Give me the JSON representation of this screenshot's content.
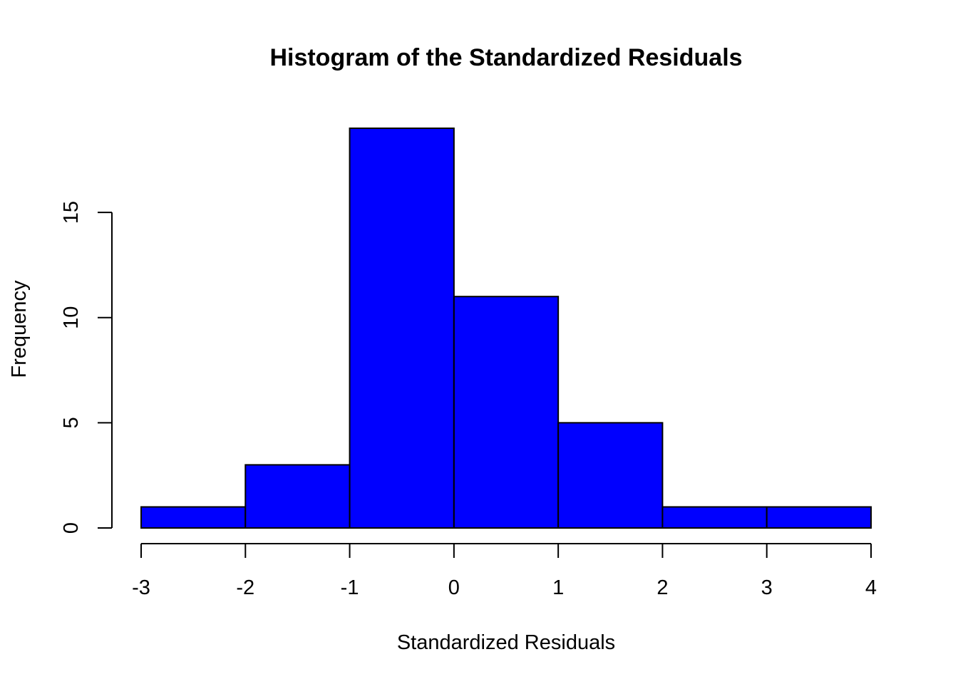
{
  "chart_data": {
    "type": "bar",
    "title": "Histogram of the Standardized Residuals",
    "xlabel": "Standardized Residuals",
    "ylabel": "Frequency",
    "bins": [
      {
        "start": -3,
        "end": -2,
        "count": 1
      },
      {
        "start": -2,
        "end": -1,
        "count": 3
      },
      {
        "start": -1,
        "end": 0,
        "count": 19
      },
      {
        "start": 0,
        "end": 1,
        "count": 11
      },
      {
        "start": 1,
        "end": 2,
        "count": 5
      },
      {
        "start": 2,
        "end": 3,
        "count": 1
      },
      {
        "start": 3,
        "end": 4,
        "count": 1
      }
    ],
    "xlim": [
      -3,
      4
    ],
    "ylim": [
      0,
      19
    ],
    "x_ticks": [
      "-3",
      "-2",
      "-1",
      "0",
      "1",
      "2",
      "3",
      "4"
    ],
    "y_ticks": [
      "0",
      "5",
      "10",
      "15"
    ],
    "bar_color": "#0000ff",
    "edge_color": "#000000",
    "grid": false,
    "legend": "none"
  }
}
